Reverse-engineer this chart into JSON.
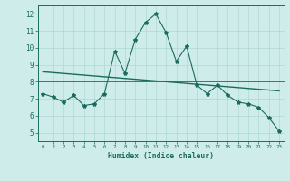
{
  "x": [
    0,
    1,
    2,
    3,
    4,
    5,
    6,
    7,
    8,
    9,
    10,
    11,
    12,
    13,
    14,
    15,
    16,
    17,
    18,
    19,
    20,
    21,
    22,
    23
  ],
  "y_main": [
    7.3,
    7.1,
    6.8,
    7.2,
    6.6,
    6.7,
    7.3,
    9.8,
    8.5,
    10.5,
    11.5,
    12.0,
    10.9,
    9.2,
    10.1,
    7.8,
    7.3,
    7.8,
    7.2,
    6.8,
    6.7,
    6.5,
    5.9,
    5.1
  ],
  "line_color": "#1a6b5e",
  "marker": "*",
  "marker_size": 3,
  "bg_color": "#ceecea",
  "grid_color": "#b0d8d4",
  "xlabel": "Humidex (Indice chaleur)",
  "ylim": [
    4.5,
    12.5
  ],
  "xlim": [
    -0.5,
    23.5
  ],
  "yticks": [
    5,
    6,
    7,
    8,
    9,
    10,
    11,
    12
  ],
  "xticks": [
    0,
    1,
    2,
    3,
    4,
    5,
    6,
    7,
    8,
    9,
    10,
    11,
    12,
    13,
    14,
    15,
    16,
    17,
    18,
    19,
    20,
    21,
    22,
    23
  ]
}
